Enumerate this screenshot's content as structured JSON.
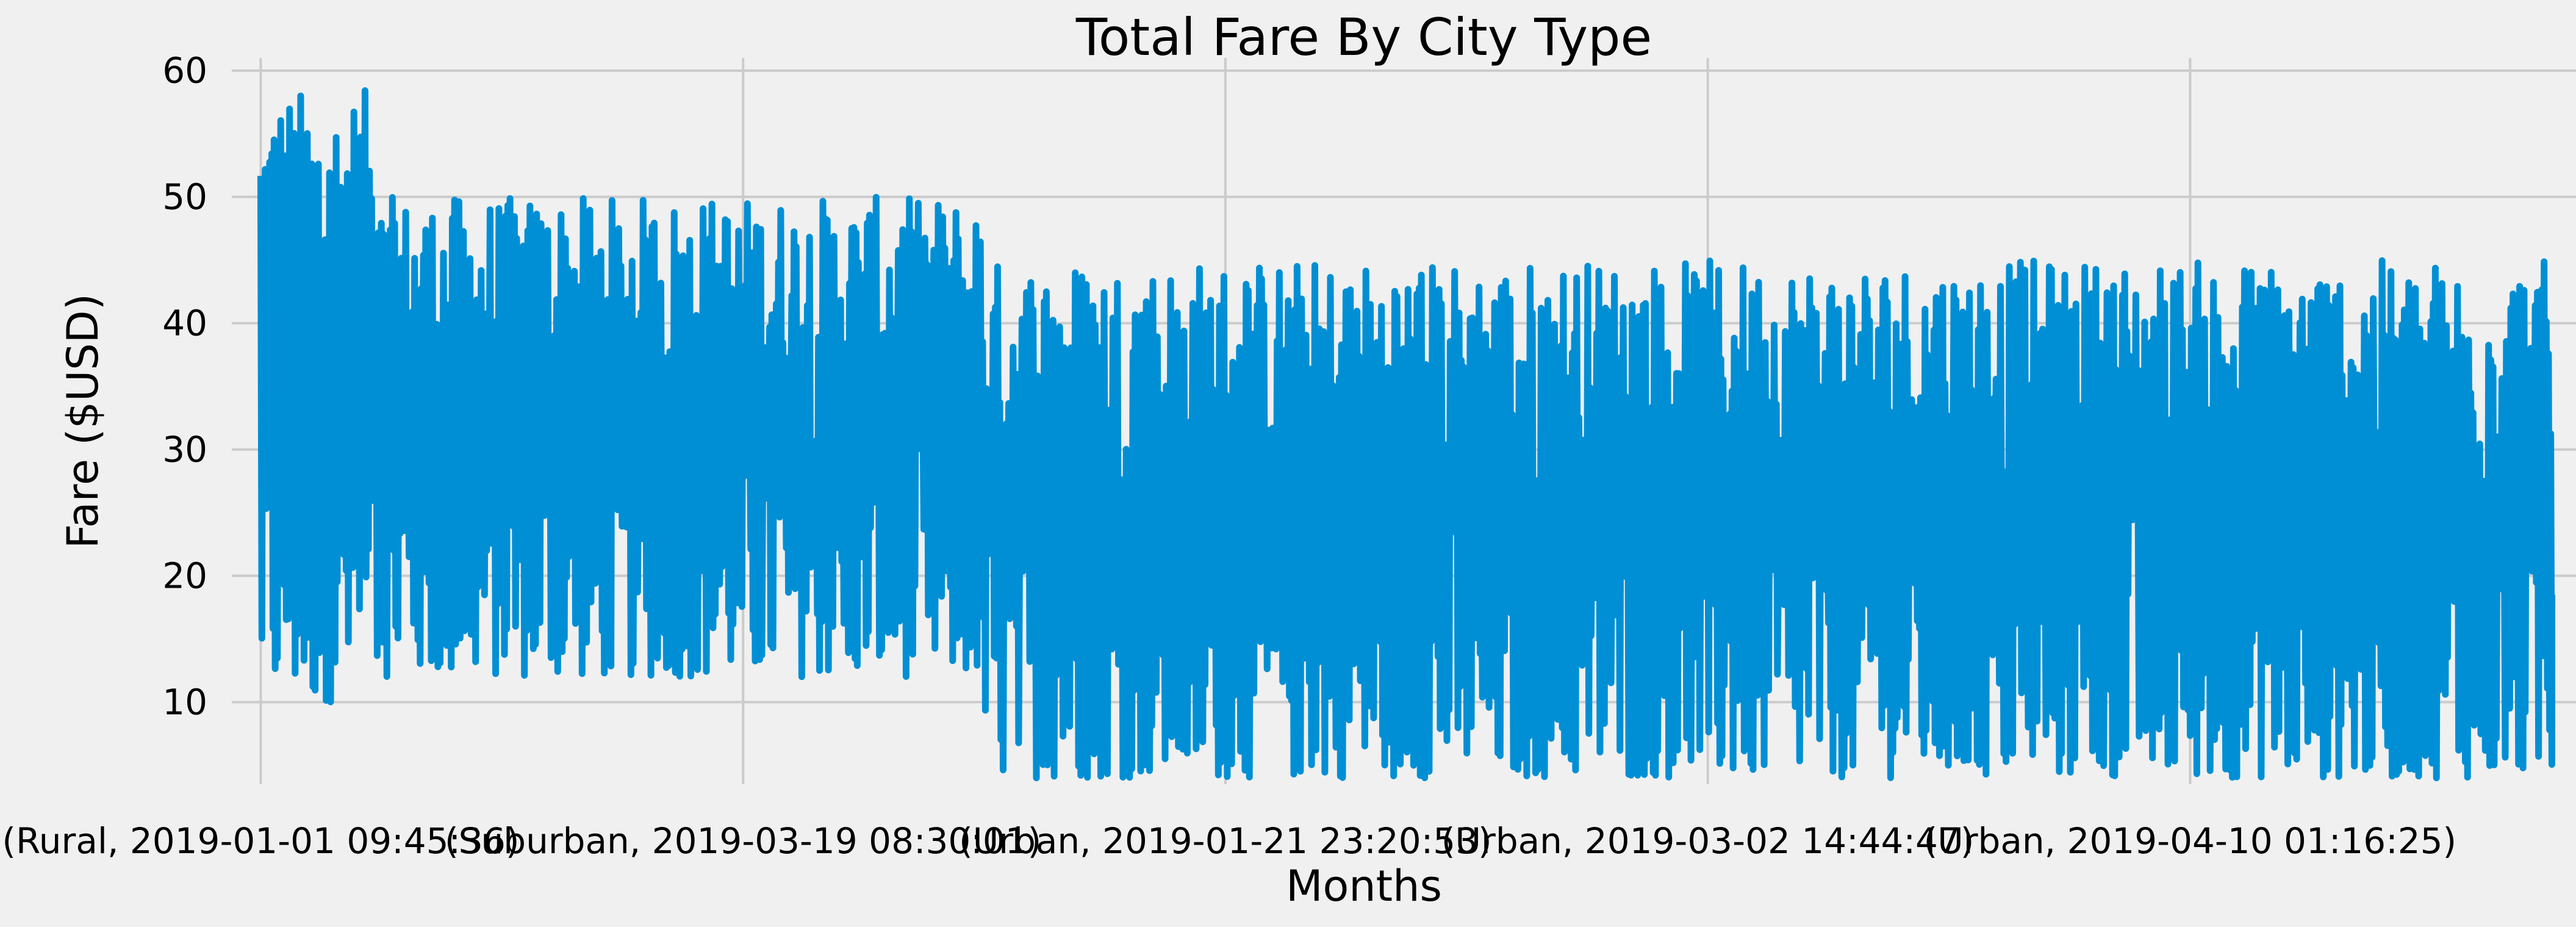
{
  "chart_data": {
    "type": "line",
    "title": "Total Fare By City Type",
    "xlabel": "Months",
    "ylabel": "Fare ($USD)",
    "ylim": [
      3.5,
      61
    ],
    "xlim": [
      -30,
      2400
    ],
    "yticks": [
      10,
      20,
      30,
      40,
      50,
      60
    ],
    "xticks": [
      {
        "pos": 0,
        "label": "(Rural, 2019-01-01 09:45:36)"
      },
      {
        "pos": 500,
        "label": "(Suburban, 2019-03-19 08:30:01)"
      },
      {
        "pos": 1000,
        "label": "(Urban, 2019-01-21 23:20:53)"
      },
      {
        "pos": 1500,
        "label": "(Urban, 2019-03-02 14:44:47)"
      },
      {
        "pos": 2000,
        "label": "(Urban, 2019-04-10 01:16:25)"
      }
    ],
    "grid": true,
    "series_color": "#008fd5",
    "segments": [
      {
        "x_start": 0,
        "x_end": 125,
        "min": 10,
        "max": 58.5
      },
      {
        "x_start": 125,
        "x_end": 750,
        "min": 12,
        "max": 50
      },
      {
        "x_start": 750,
        "x_end": 2375,
        "min": 4,
        "max": 45
      }
    ],
    "end_value": 18.5
  }
}
